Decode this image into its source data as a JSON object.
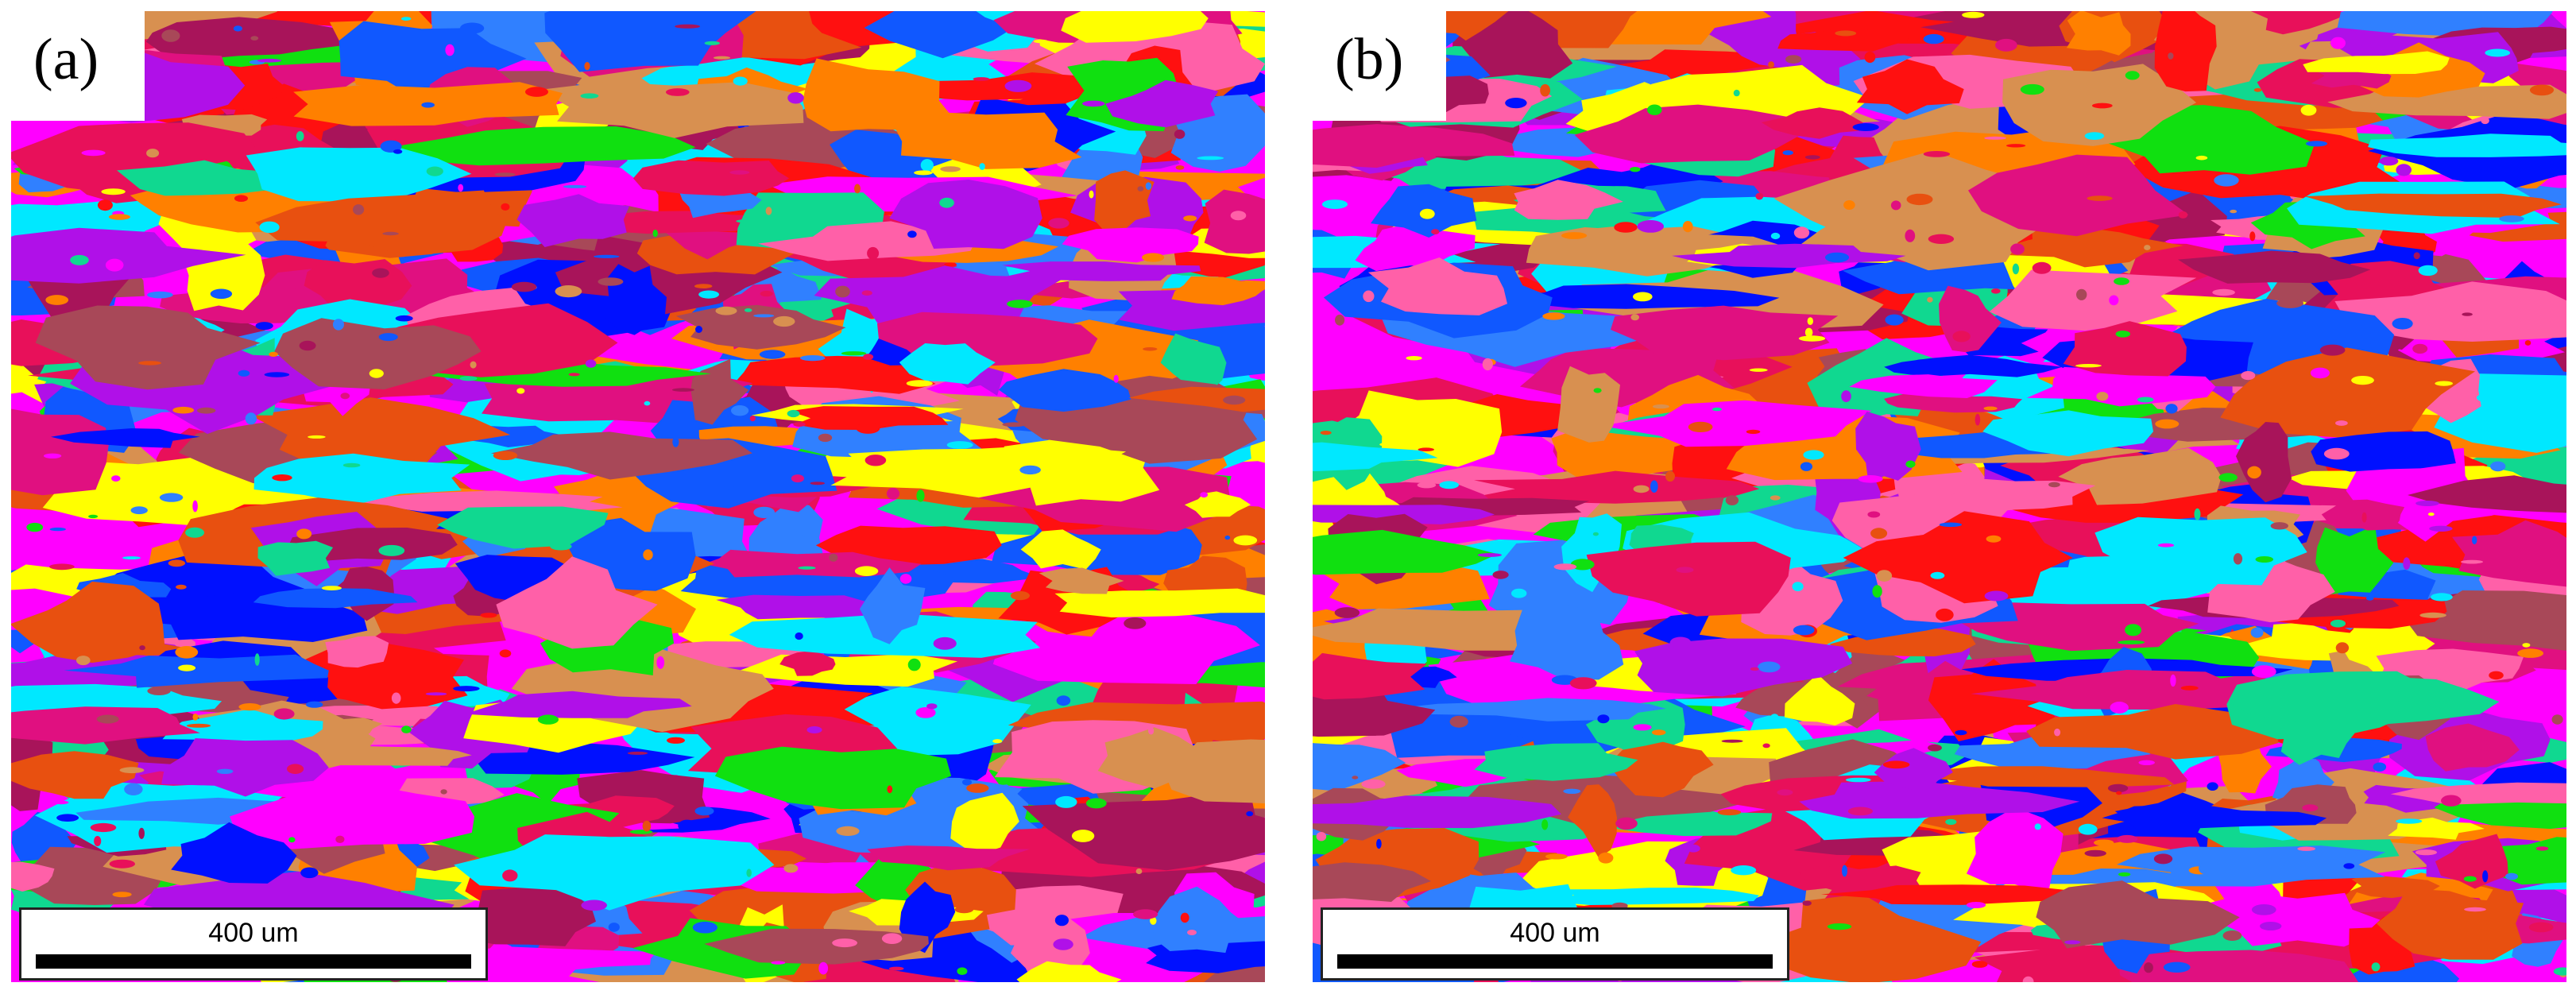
{
  "panels": [
    {
      "label": "(a)",
      "scalebar_label": "400 um"
    },
    {
      "label": "(b)",
      "scalebar_label": "400 um"
    }
  ],
  "palette": [
    "#ff00ff",
    "#e8105a",
    "#ff1010",
    "#1058ff",
    "#0010ff",
    "#00e8ff",
    "#10e010",
    "#10d890",
    "#ffff00",
    "#a8145a",
    "#a84858",
    "#b010e8",
    "#ff8000",
    "#d89050",
    "#ff60a8",
    "#3080ff",
    "#e85010",
    "#e01080"
  ]
}
